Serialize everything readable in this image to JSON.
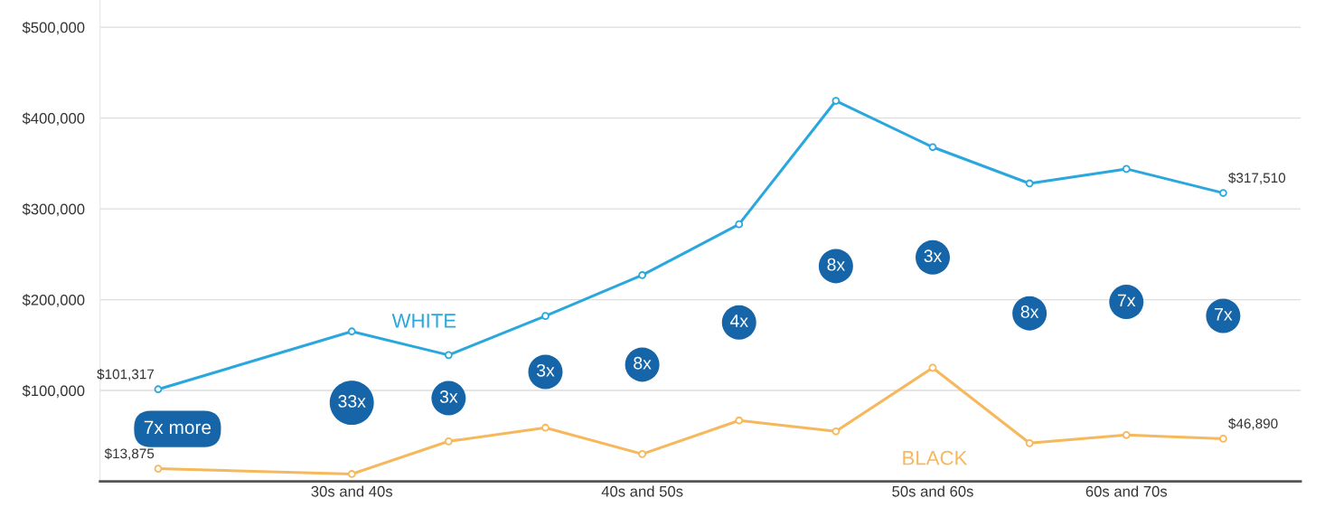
{
  "chart_data": {
    "type": "line",
    "ylim": [
      0,
      530000
    ],
    "categories": [
      null,
      null,
      "30s and 40s",
      null,
      null,
      "40s and 50s",
      null,
      null,
      "50s and 60s",
      null,
      "60s and 70s",
      null
    ],
    "yticks": [
      {
        "value": 100000,
        "label": "$100,000"
      },
      {
        "value": 200000,
        "label": "$200,000"
      },
      {
        "value": 300000,
        "label": "$300,000"
      },
      {
        "value": 400000,
        "label": "$400,000"
      },
      {
        "value": 500000,
        "label": "$500,000"
      }
    ],
    "grid": "y",
    "marker": "circle",
    "line_style": "solid",
    "series": [
      {
        "name": "WHITE",
        "color": "#2aa7dc",
        "values": [
          101317,
          null,
          165000,
          139000,
          182000,
          227000,
          283000,
          419000,
          368000,
          328000,
          344000,
          317510
        ],
        "value_labels": [
          "$101,317",
          null,
          null,
          null,
          null,
          null,
          null,
          null,
          null,
          null,
          null,
          "$317,510"
        ]
      },
      {
        "name": "BLACK",
        "color": "#f5b85c",
        "values": [
          13875,
          null,
          8000,
          44000,
          59000,
          30000,
          67000,
          55000,
          125000,
          42000,
          51000,
          46890
        ],
        "value_labels": [
          "$13,875",
          null,
          null,
          null,
          null,
          null,
          null,
          null,
          null,
          null,
          null,
          "$46,890"
        ]
      }
    ],
    "annotations": [
      "7x more",
      "33x",
      "3x",
      "3x",
      "8x",
      "4x",
      "8x",
      "3x",
      "8x",
      "7x",
      "7x"
    ]
  }
}
